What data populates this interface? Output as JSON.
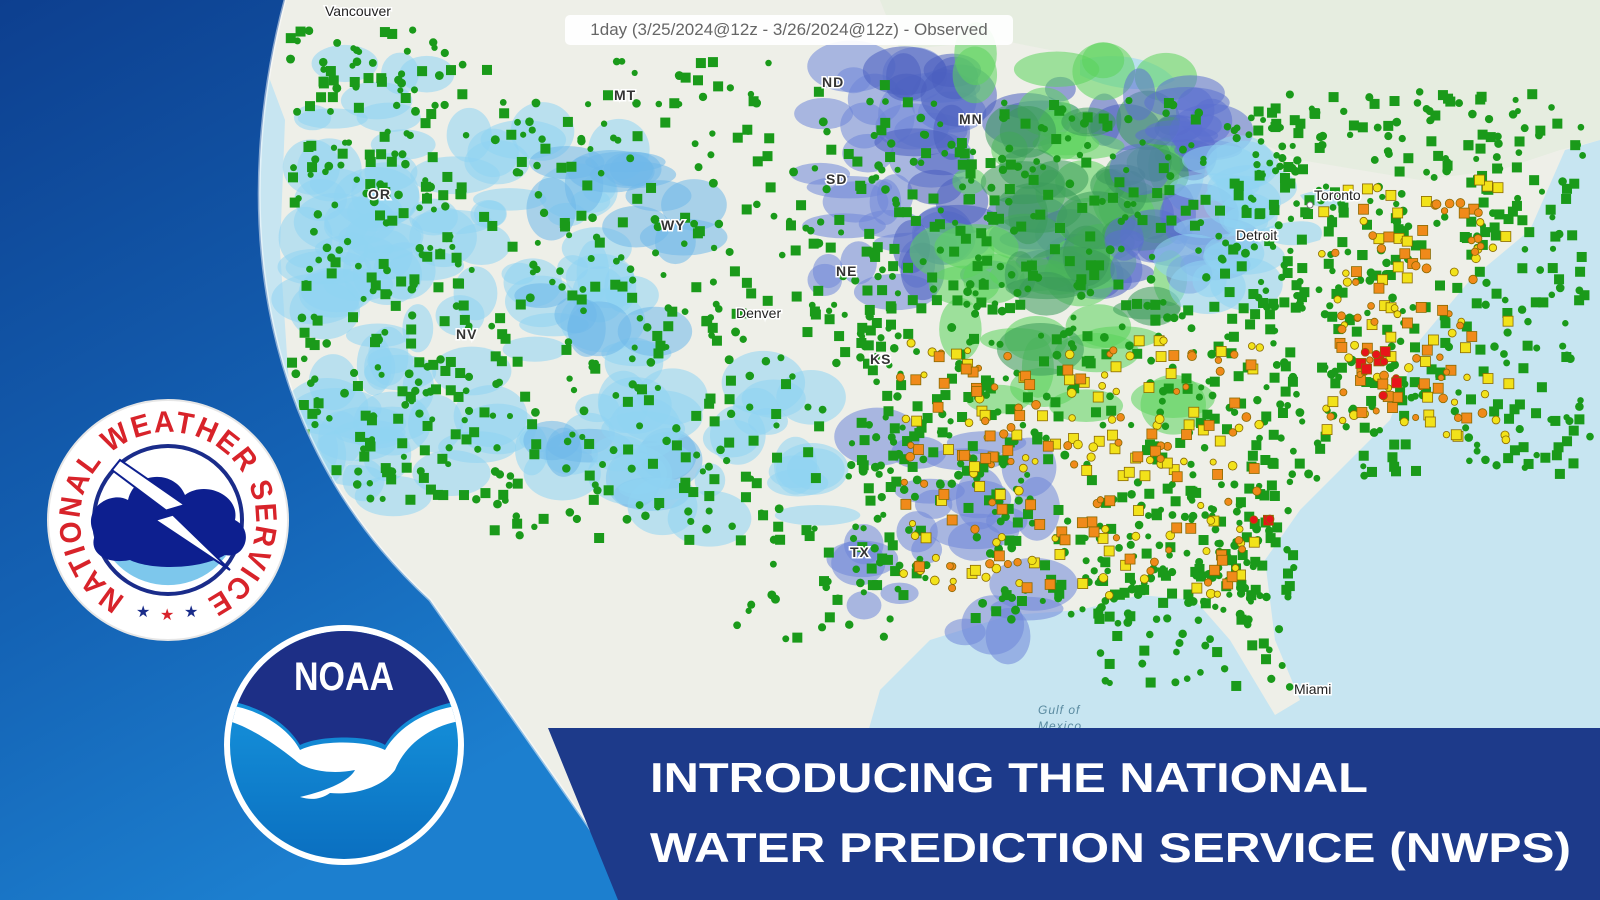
{
  "map": {
    "layer_title": "1day (3/25/2024@12z - 3/26/2024@12z) - Observed",
    "labels": {
      "vancouver": "Vancouver",
      "mt": "MT",
      "nd": "ND",
      "mn": "MN",
      "or": "OR",
      "wy": "WY",
      "sd": "SD",
      "ne": "NE",
      "nv": "NV",
      "denver": "Denver",
      "ks": "KS",
      "tx": "TX",
      "toronto": "Toronto",
      "detroit": "Detroit",
      "gulf": [
        "Gulf of",
        "Mexico"
      ],
      "miami": "Miami"
    }
  },
  "logos": {
    "nws": "NATIONAL WEATHER SERVICE",
    "noaa": "NOAA"
  },
  "headline": [
    "INTRODUCING THE NATIONAL",
    "WATER PREDICTION SERVICE (NWPS)"
  ]
}
